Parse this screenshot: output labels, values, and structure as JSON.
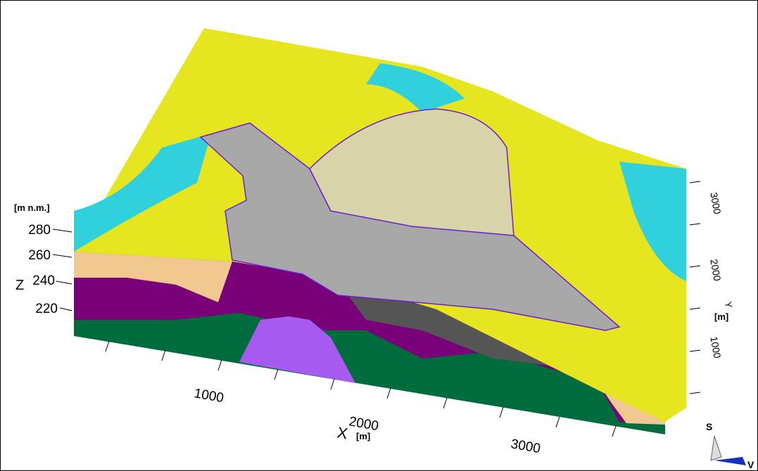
{
  "z_axis": {
    "unit": "[m n.m.]",
    "label": "Z",
    "ticks": [
      "280",
      "260",
      "240",
      "220"
    ]
  },
  "x_axis": {
    "label": "X",
    "unit": "[m]",
    "ticks": [
      "1000",
      "2000",
      "3000"
    ]
  },
  "y_axis": {
    "label": "Y",
    "unit": "[m]",
    "ticks": [
      "3000",
      "2000",
      "1000"
    ]
  },
  "orientation": {
    "up": "S",
    "east": "V"
  }
}
